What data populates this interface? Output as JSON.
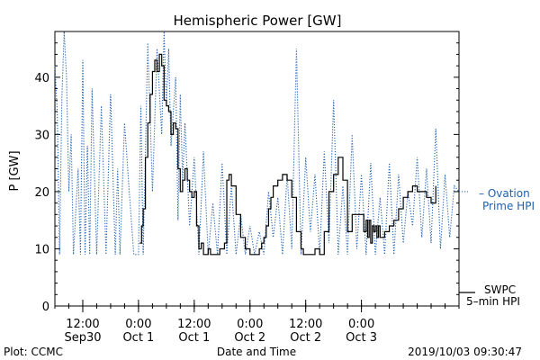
{
  "chart_data": {
    "type": "line",
    "title": "Hemispheric Power [GW]",
    "xlabel": "Date and Time",
    "ylabel": "P [GW]",
    "ylim": [
      0,
      48
    ],
    "yticks": [
      0,
      10,
      20,
      30,
      40
    ],
    "xlim": [
      "2019-09-30T06:00",
      "2019-10-03T21:00"
    ],
    "xticks": [
      {
        "time": "2019-09-30T12:00",
        "label1": "12:00",
        "label2": "Sep30"
      },
      {
        "time": "2019-10-01T00:00",
        "label1": "0:00",
        "label2": "Oct 1"
      },
      {
        "time": "2019-10-01T12:00",
        "label1": "12:00",
        "label2": "Oct 1"
      },
      {
        "time": "2019-10-02T00:00",
        "label1": "0:00",
        "label2": "Oct 2"
      },
      {
        "time": "2019-10-02T12:00",
        "label1": "12:00",
        "label2": "Oct 2"
      },
      {
        "time": "2019-10-03T00:00",
        "label1": "0:00",
        "label2": "Oct 3"
      }
    ],
    "grid": false,
    "legend_position": "right",
    "series": [
      {
        "name": "Ovation Prime HPI",
        "legend_lines": [
          "– Ovation",
          "Prime HPI"
        ],
        "style": "dotted",
        "color": "#2060b0",
        "x": [
          "2019-09-30T06:00",
          "2019-09-30T06:30",
          "2019-09-30T07:00",
          "2019-09-30T07:30",
          "2019-09-30T08:00",
          "2019-09-30T08:30",
          "2019-09-30T09:00",
          "2019-09-30T09:30",
          "2019-09-30T10:00",
          "2019-09-30T11:00",
          "2019-09-30T11:30",
          "2019-09-30T12:00",
          "2019-09-30T12:30",
          "2019-09-30T13:00",
          "2019-09-30T13:30",
          "2019-09-30T14:00",
          "2019-09-30T15:00",
          "2019-09-30T16:00",
          "2019-09-30T17:00",
          "2019-09-30T18:00",
          "2019-09-30T19:00",
          "2019-09-30T19:30",
          "2019-09-30T20:00",
          "2019-09-30T21:00",
          "2019-09-30T22:00",
          "2019-09-30T23:00",
          "2019-10-01T00:00",
          "2019-10-01T00:30",
          "2019-10-01T01:00",
          "2019-10-01T02:00",
          "2019-10-01T03:00",
          "2019-10-01T04:00",
          "2019-10-01T05:00",
          "2019-10-01T05:30",
          "2019-10-01T06:00",
          "2019-10-01T06:30",
          "2019-10-01T07:00",
          "2019-10-01T08:00",
          "2019-10-01T08:30",
          "2019-10-01T09:00",
          "2019-10-01T09:30",
          "2019-10-01T10:00",
          "2019-10-01T11:00",
          "2019-10-01T12:00",
          "2019-10-01T13:00",
          "2019-10-01T14:00",
          "2019-10-01T15:00",
          "2019-10-01T16:00",
          "2019-10-01T17:00",
          "2019-10-01T18:00",
          "2019-10-01T19:00",
          "2019-10-01T20:00",
          "2019-10-01T21:00",
          "2019-10-01T22:00",
          "2019-10-01T23:00",
          "2019-10-02T00:00",
          "2019-10-02T01:00",
          "2019-10-02T02:00",
          "2019-10-02T03:00",
          "2019-10-02T04:00",
          "2019-10-02T05:00",
          "2019-10-02T06:00",
          "2019-10-02T07:00",
          "2019-10-02T08:00",
          "2019-10-02T09:00",
          "2019-10-02T10:00",
          "2019-10-02T11:00",
          "2019-10-02T12:00",
          "2019-10-02T13:00",
          "2019-10-02T14:00",
          "2019-10-02T15:00",
          "2019-10-02T16:00",
          "2019-10-02T17:00",
          "2019-10-02T18:00",
          "2019-10-02T19:00",
          "2019-10-02T20:00",
          "2019-10-02T21:00",
          "2019-10-02T22:00",
          "2019-10-02T23:00",
          "2019-10-03T00:00",
          "2019-10-03T01:00",
          "2019-10-03T02:00",
          "2019-10-03T03:00",
          "2019-10-03T04:00",
          "2019-10-03T05:00",
          "2019-10-03T06:00",
          "2019-10-03T07:00",
          "2019-10-03T08:00",
          "2019-10-03T09:00",
          "2019-10-03T10:00",
          "2019-10-03T11:00",
          "2019-10-03T12:00",
          "2019-10-03T13:00",
          "2019-10-03T14:00",
          "2019-10-03T15:00",
          "2019-10-03T16:00",
          "2019-10-03T17:00",
          "2019-10-03T18:00",
          "2019-10-03T19:00",
          "2019-10-03T20:00",
          "2019-10-03T21:00"
        ],
        "values": [
          42,
          34,
          9,
          36,
          48,
          40,
          20,
          30,
          9,
          24,
          9,
          43,
          9,
          28,
          9,
          38,
          9,
          35,
          9,
          37,
          9,
          24,
          9,
          32,
          20,
          9,
          9,
          35,
          9,
          46,
          20,
          45,
          30,
          48,
          35,
          45,
          28,
          40,
          15,
          37,
          22,
          32,
          14,
          26,
          9,
          27,
          9,
          18,
          9,
          25,
          9,
          21,
          9,
          16,
          9,
          14,
          9,
          13,
          9,
          20,
          12,
          19,
          9,
          23,
          10,
          45,
          9,
          26,
          13,
          23,
          9,
          27,
          11,
          36,
          9,
          21,
          9,
          30,
          10,
          23,
          9,
          25,
          9,
          19,
          9,
          25,
          9,
          23,
          11,
          20,
          14,
          26,
          12,
          24,
          11,
          31,
          10,
          23,
          12,
          21,
          20
        ]
      },
      {
        "name": "SWPC 5-min HPI",
        "legend_lines": [
          "SWPC",
          "5–min HPI"
        ],
        "style": "solid",
        "color": "#000000",
        "x": [
          "2019-10-01T00:15",
          "2019-10-01T00:40",
          "2019-10-01T01:00",
          "2019-10-01T01:30",
          "2019-10-01T02:00",
          "2019-10-01T02:30",
          "2019-10-01T03:00",
          "2019-10-01T03:30",
          "2019-10-01T04:00",
          "2019-10-01T04:30",
          "2019-10-01T05:00",
          "2019-10-01T05:30",
          "2019-10-01T06:00",
          "2019-10-01T06:30",
          "2019-10-01T07:00",
          "2019-10-01T07:30",
          "2019-10-01T08:00",
          "2019-10-01T08:30",
          "2019-10-01T09:00",
          "2019-10-01T09:30",
          "2019-10-01T10:00",
          "2019-10-01T10:30",
          "2019-10-01T11:00",
          "2019-10-01T11:30",
          "2019-10-01T12:00",
          "2019-10-01T12:30",
          "2019-10-01T13:00",
          "2019-10-01T13:30",
          "2019-10-01T14:00",
          "2019-10-01T14:30",
          "2019-10-01T15:00",
          "2019-10-01T15:30",
          "2019-10-01T16:00",
          "2019-10-01T16:30",
          "2019-10-01T17:00",
          "2019-10-01T17:30",
          "2019-10-01T18:00",
          "2019-10-01T18:30",
          "2019-10-01T19:00",
          "2019-10-01T19:30",
          "2019-10-01T20:00",
          "2019-10-01T21:00",
          "2019-10-01T22:00",
          "2019-10-01T23:00",
          "2019-10-02T00:00",
          "2019-10-02T01:00",
          "2019-10-02T01:30",
          "2019-10-02T02:00",
          "2019-10-02T02:30",
          "2019-10-02T03:00",
          "2019-10-02T03:30",
          "2019-10-02T04:00",
          "2019-10-02T04:30",
          "2019-10-02T05:00",
          "2019-10-02T06:00",
          "2019-10-02T07:00",
          "2019-10-02T08:00",
          "2019-10-02T09:00",
          "2019-10-02T10:00",
          "2019-10-02T11:00",
          "2019-10-02T11:30",
          "2019-10-02T12:00",
          "2019-10-02T12:30",
          "2019-10-02T13:00",
          "2019-10-02T14:00",
          "2019-10-02T15:00",
          "2019-10-02T15:30",
          "2019-10-02T16:00",
          "2019-10-02T17:00",
          "2019-10-02T18:00",
          "2019-10-02T19:00",
          "2019-10-02T20:00",
          "2019-10-02T21:00",
          "2019-10-02T22:00",
          "2019-10-02T23:00",
          "2019-10-03T00:00",
          "2019-10-03T00:30",
          "2019-10-03T01:00",
          "2019-10-03T01:20",
          "2019-10-03T01:40",
          "2019-10-03T02:00",
          "2019-10-03T02:20",
          "2019-10-03T02:40",
          "2019-10-03T03:00",
          "2019-10-03T03:20",
          "2019-10-03T03:40",
          "2019-10-03T04:00",
          "2019-10-03T04:30",
          "2019-10-03T05:00",
          "2019-10-03T05:30",
          "2019-10-03T06:00",
          "2019-10-03T07:00",
          "2019-10-03T08:00",
          "2019-10-03T09:00",
          "2019-10-03T10:00",
          "2019-10-03T11:00",
          "2019-10-03T12:00",
          "2019-10-03T13:00",
          "2019-10-03T14:00",
          "2019-10-03T15:00",
          "2019-10-03T16:00"
        ],
        "values": [
          11,
          14,
          17,
          26,
          32,
          37,
          41,
          43,
          41,
          44,
          42,
          36,
          35,
          34,
          30,
          32,
          31,
          24,
          20,
          22,
          24,
          22,
          20,
          19,
          20,
          14,
          10,
          11,
          9,
          9,
          10,
          9,
          9,
          9,
          9,
          10,
          10,
          11,
          22,
          23,
          21,
          16,
          12,
          10,
          9,
          9,
          9,
          10,
          11,
          12,
          14,
          17,
          19,
          21,
          22,
          23,
          22,
          19,
          13,
          10,
          9,
          9,
          9,
          9,
          10,
          9,
          9,
          13,
          20,
          23,
          26,
          22,
          13,
          16,
          16,
          16,
          13,
          15,
          12,
          15,
          11,
          14,
          13,
          14,
          12,
          14,
          12,
          12,
          13,
          13,
          14,
          15,
          17,
          19,
          20,
          21,
          20,
          20,
          19,
          18,
          21
        ]
      }
    ],
    "footer": {
      "left": "Plot: CCMC",
      "center": "Date and Time",
      "right": "2019/10/03 09:30:47"
    }
  }
}
